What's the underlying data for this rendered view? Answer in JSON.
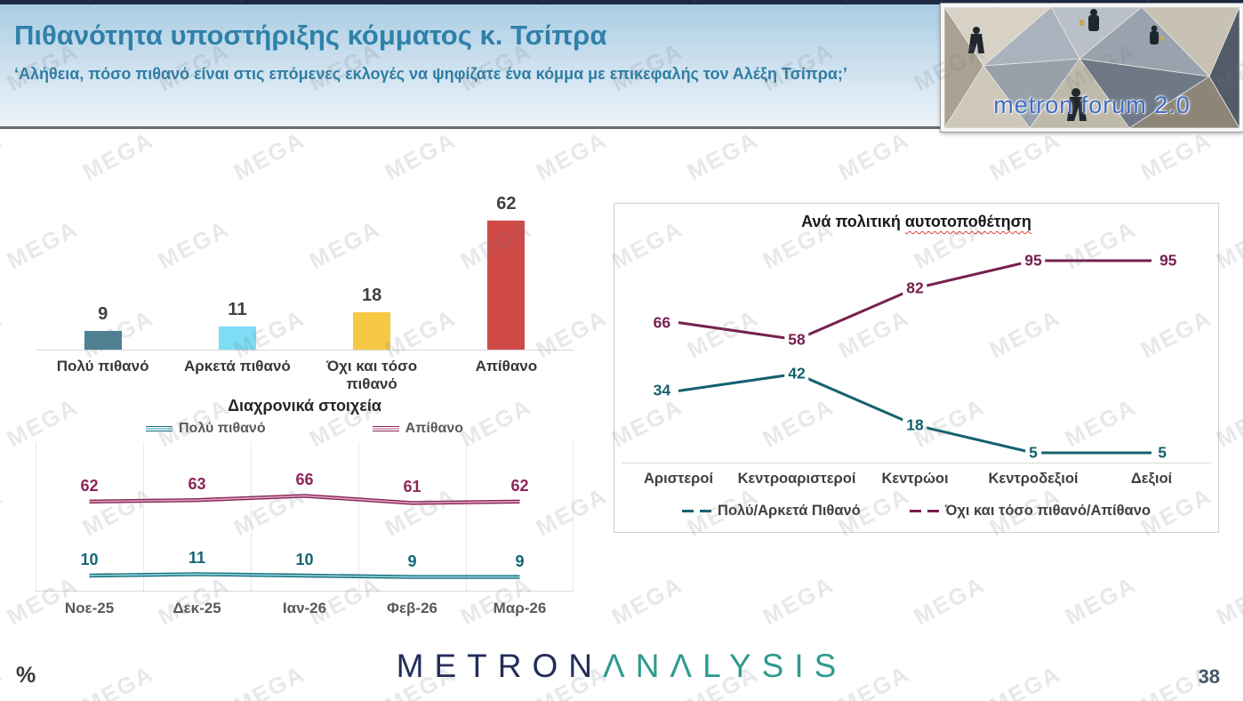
{
  "slide": {
    "page_number": "38",
    "unit_label": "%",
    "watermark_text": "MEGA"
  },
  "header": {
    "title": "Πιθανότητα υποστήριξης κόμματος κ. Τσίπρα",
    "subtitle": "‘Αλήθεια, πόσο πιθανό είναι στις επόμενες εκλογές να ψηφίζατε ένα κόμμα με επικεφαλής τον Αλέξη Τσίπρα;’",
    "logo_text": "metron forum 2.0"
  },
  "footer": {
    "brand_metron": "METRON",
    "brand_analysis": "ΛNΛLYSIS"
  },
  "chart_data": [
    {
      "type": "bar",
      "title": "",
      "categories": [
        "Πολύ πιθανό",
        "Αρκετά πιθανό",
        "Όχι και τόσο πιθανό",
        "Απίθανο"
      ],
      "values": [
        9,
        11,
        18,
        62
      ],
      "colors": [
        "#4e8193",
        "#7edcf5",
        "#f7c844",
        "#cf4a47"
      ],
      "ylim": [
        0,
        70
      ],
      "data_labels": true,
      "label_color": "#3f3f46"
    },
    {
      "type": "line",
      "title": "Διαχρονικά στοιχεία",
      "categories": [
        "Νοε-25",
        "Δεκ-25",
        "Ιαν-26",
        "Φεβ-26",
        "Μαρ-26"
      ],
      "series": [
        {
          "name": "Πολύ πιθανό",
          "values": [
            10,
            11,
            10,
            9,
            9
          ],
          "color": "#17707f",
          "color_light": "#8fd0d8",
          "label_color": "#156577"
        },
        {
          "name": "Απίθανο",
          "values": [
            62,
            63,
            66,
            61,
            62
          ],
          "color": "#8b2457",
          "color_light": "#d9a2bf",
          "label_color": "#8e2558"
        }
      ],
      "legend_position": "top",
      "grid": "vertical-gridlines",
      "ylim": [
        0,
        100
      ]
    },
    {
      "type": "line",
      "title": "Ανά πολιτική αυτοτοποθέτηση",
      "title_plain": "Ανά πολιτική",
      "title_underlined": "αυτοτοποθέτηση",
      "categories": [
        "Αριστεροί",
        "Κεντροαριστεροί",
        "Κεντρώοι",
        "Κεντροδεξιοί",
        "Δεξιοί"
      ],
      "series": [
        {
          "name": "Πολύ/Αρκετά Πιθανό",
          "values": [
            34,
            42,
            18,
            5,
            5
          ],
          "color": "#14616e"
        },
        {
          "name": "Όχι και τόσο πιθανό/Απίθανο",
          "values": [
            66,
            58,
            82,
            95,
            95
          ],
          "color": "#77204e"
        }
      ],
      "legend_position": "bottom",
      "ylim": [
        0,
        100
      ]
    }
  ]
}
